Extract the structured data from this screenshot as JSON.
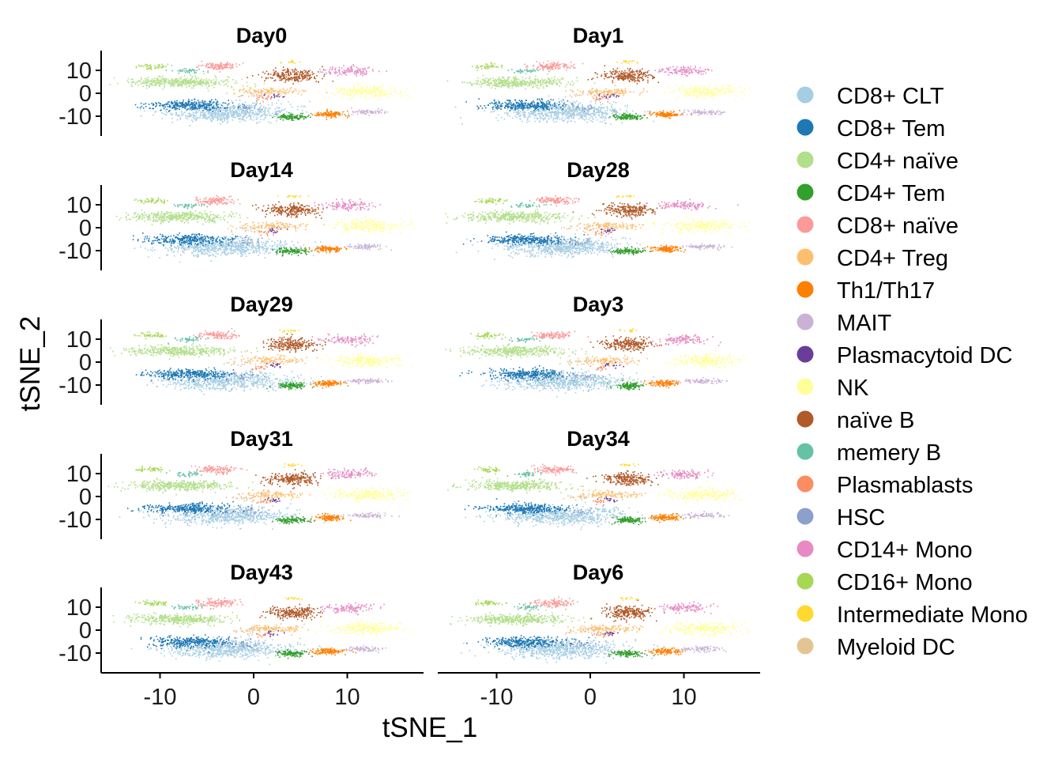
{
  "chart_data": {
    "type": "scatter",
    "xlabel": "tSNE_1",
    "ylabel": "tSNE_2",
    "xlim": [
      -16,
      18
    ],
    "ylim": [
      -18,
      18
    ],
    "x_ticks": [
      "-10",
      "0",
      "10"
    ],
    "x_tick_values": [
      -10,
      0,
      10
    ],
    "y_ticks": [
      "10",
      "0",
      "-10"
    ],
    "y_tick_values": [
      10,
      0,
      -10
    ],
    "legend_position": "right",
    "panels": [
      "Day0",
      "Day1",
      "Day14",
      "Day28",
      "Day29",
      "Day3",
      "Day31",
      "Day34",
      "Day43",
      "Day6"
    ],
    "series": [
      {
        "name": "CD8+ CLT",
        "color": "#A6CEE3",
        "center": [
          -3,
          -8
        ],
        "spread": [
          6,
          3.5
        ],
        "weight": 9
      },
      {
        "name": "CD8+ Tem",
        "color": "#1F78B4",
        "center": [
          -7,
          -5
        ],
        "spread": [
          4,
          2
        ],
        "weight": 4
      },
      {
        "name": "CD4+ naïve",
        "color": "#B2DF8A",
        "center": [
          -8,
          5
        ],
        "spread": [
          5,
          2
        ],
        "weight": 5
      },
      {
        "name": "CD4+ Tem",
        "color": "#33A02C",
        "center": [
          4,
          -10
        ],
        "spread": [
          1.5,
          1.2
        ],
        "weight": 1.5
      },
      {
        "name": "CD8+ naïve",
        "color": "#FB9A99",
        "center": [
          -4,
          12
        ],
        "spread": [
          2,
          1.5
        ],
        "weight": 1.5
      },
      {
        "name": "CD4+ Treg",
        "color": "#FDBF6F",
        "center": [
          2,
          1
        ],
        "spread": [
          3,
          1.5
        ],
        "weight": 1.5
      },
      {
        "name": "Th1/Th17",
        "color": "#FF7F00",
        "center": [
          8,
          -9
        ],
        "spread": [
          1.5,
          1.2
        ],
        "weight": 1.5
      },
      {
        "name": "MAIT",
        "color": "#CAB2D6",
        "center": [
          12,
          -8
        ],
        "spread": [
          2,
          1
        ],
        "weight": 1
      },
      {
        "name": "Plasmacytoid DC",
        "color": "#6A3D9A",
        "center": [
          2,
          -1
        ],
        "spread": [
          1,
          1
        ],
        "weight": 0.2
      },
      {
        "name": "NK",
        "color": "#FFFF99",
        "center": [
          12,
          1
        ],
        "spread": [
          3.5,
          2.5
        ],
        "weight": 3
      },
      {
        "name": "naïve B",
        "color": "#B15928",
        "center": [
          4,
          8
        ],
        "spread": [
          2.5,
          2.5
        ],
        "weight": 3
      },
      {
        "name": "memery B",
        "color": "#66C2A5",
        "center": [
          -7,
          10
        ],
        "spread": [
          1.5,
          1
        ],
        "weight": 0.5
      },
      {
        "name": "Plasmablasts",
        "color": "#FC8D62",
        "center": [
          1,
          -2
        ],
        "spread": [
          1,
          1
        ],
        "weight": 0.2
      },
      {
        "name": "HSC",
        "color": "#8DA0CB",
        "center": [
          -1,
          -6
        ],
        "spread": [
          2,
          1.5
        ],
        "weight": 0.3
      },
      {
        "name": "CD14+ Mono",
        "color": "#E78AC3",
        "center": [
          10,
          10
        ],
        "spread": [
          2.5,
          1.8
        ],
        "weight": 1.5
      },
      {
        "name": "CD16+ Mono",
        "color": "#A6D854",
        "center": [
          -11,
          12
        ],
        "spread": [
          1.5,
          1
        ],
        "weight": 0.6
      },
      {
        "name": "Intermediate Mono",
        "color": "#FFD92F",
        "center": [
          4,
          14
        ],
        "spread": [
          1,
          0.6
        ],
        "weight": 0.2
      },
      {
        "name": "Myeloid DC",
        "color": "#E5C494",
        "center": [
          -1,
          0
        ],
        "spread": [
          2,
          1.5
        ],
        "weight": 0.3
      }
    ]
  }
}
